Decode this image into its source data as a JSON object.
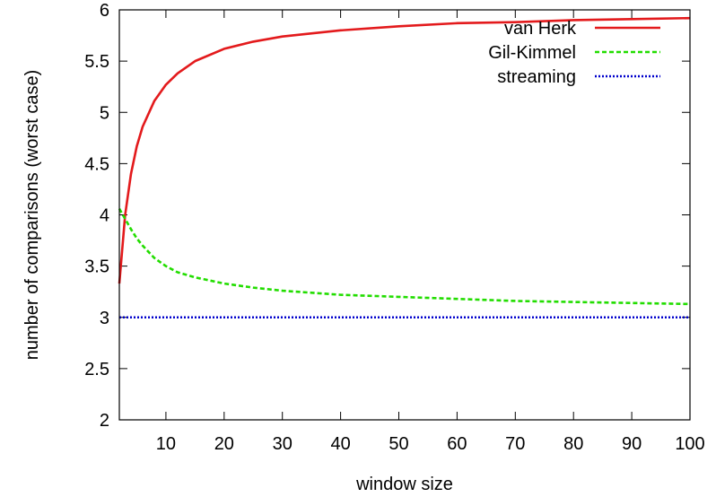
{
  "chart_data": {
    "type": "line",
    "xlabel": "window size",
    "ylabel": "number of comparisons (worst case)",
    "xlim": [
      2,
      100
    ],
    "ylim": [
      2,
      6
    ],
    "xticks": [
      10,
      20,
      30,
      40,
      50,
      60,
      70,
      80,
      90,
      100
    ],
    "yticks": [
      2,
      2.5,
      3,
      3.5,
      4,
      4.5,
      5,
      5.5,
      6
    ],
    "ytick_labels": [
      "2",
      "2.5",
      "3",
      "3.5",
      "4",
      "4.5",
      "5",
      "5.5",
      "6"
    ],
    "grid": false,
    "legend_position": "top-right",
    "series": [
      {
        "name": "van Herk",
        "color": "#e31a1c",
        "style": "solid",
        "x": [
          2,
          3,
          4,
          5,
          6,
          8,
          10,
          12,
          15,
          20,
          25,
          30,
          40,
          50,
          60,
          70,
          80,
          90,
          100
        ],
        "y": [
          3.33,
          4.0,
          4.4,
          4.67,
          4.86,
          5.11,
          5.27,
          5.38,
          5.5,
          5.62,
          5.69,
          5.74,
          5.8,
          5.84,
          5.87,
          5.88,
          5.9,
          5.91,
          5.92
        ]
      },
      {
        "name": "Gil-Kimmel",
        "color": "#22dd00",
        "style": "dashed",
        "x": [
          2,
          3,
          4,
          5,
          6,
          8,
          10,
          12,
          15,
          20,
          25,
          30,
          40,
          50,
          60,
          70,
          80,
          90,
          100
        ],
        "y": [
          4.06,
          3.96,
          3.86,
          3.77,
          3.7,
          3.58,
          3.5,
          3.44,
          3.39,
          3.33,
          3.29,
          3.26,
          3.22,
          3.2,
          3.18,
          3.16,
          3.15,
          3.14,
          3.13
        ]
      },
      {
        "name": "streaming",
        "color": "#0000cc",
        "style": "dotted",
        "x": [
          2,
          100
        ],
        "y": [
          3,
          3
        ]
      }
    ]
  }
}
